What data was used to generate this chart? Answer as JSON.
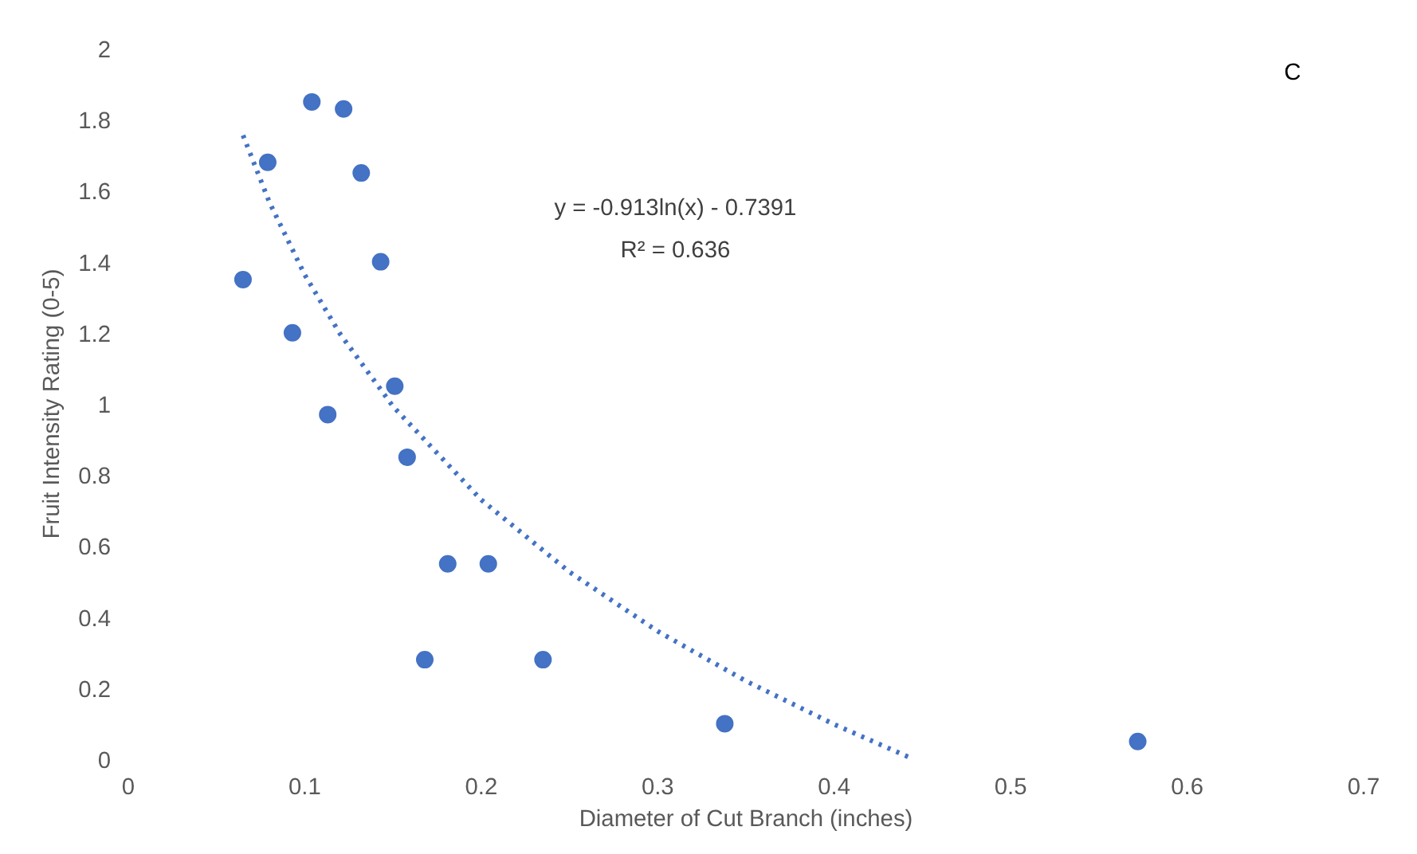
{
  "chart_data": {
    "type": "scatter",
    "xlabel": "Diameter of Cut Branch (inches)",
    "ylabel": "Fruit Intensity Rating (0-5)",
    "annotations": [
      "C",
      "y = -0.913ln(x) - 0.7391",
      "R² = 0.636"
    ],
    "series": [
      {
        "color": "#4472c4",
        "marker": "circle",
        "x": [
          0.065,
          0.079,
          0.093,
          0.104,
          0.113,
          0.122,
          0.132,
          0.143,
          0.151,
          0.158,
          0.168,
          0.181,
          0.204,
          0.235,
          0.338,
          0.572
        ],
        "values": [
          1.35,
          1.68,
          1.2,
          1.85,
          0.97,
          1.83,
          1.65,
          1.4,
          1.05,
          0.85,
          0.28,
          0.55,
          0.55,
          0.28,
          0.1,
          0.05
        ]
      },
      {
        "type": "line",
        "color": "#4472c4",
        "line_style": "dotted",
        "x": [
          0.065,
          0.08,
          0.1,
          0.12,
          0.15,
          0.2,
          0.25,
          0.3,
          0.35,
          0.4,
          0.445
        ],
        "values": [
          1.756,
          1.567,
          1.363,
          1.197,
          0.993,
          0.73,
          0.527,
          0.36,
          0.22,
          0.098,
          0.0
        ]
      }
    ],
    "xlim": [
      0,
      0.7
    ],
    "xticks": [
      0,
      0.1,
      0.2,
      0.3,
      0.4,
      0.5,
      0.6,
      0.7
    ],
    "ylim": [
      0,
      2
    ],
    "yticks": [
      0,
      0.2,
      0.4,
      0.6,
      0.8,
      1,
      1.2,
      1.4,
      1.6,
      1.8,
      2
    ],
    "grid": false
  }
}
